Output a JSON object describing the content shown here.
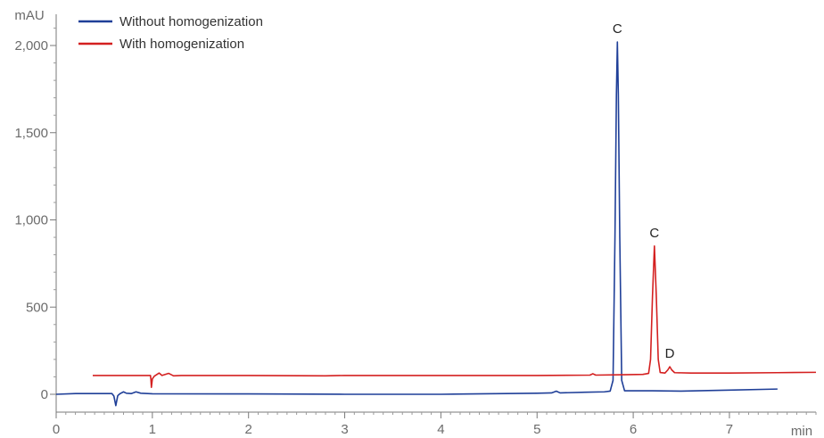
{
  "chart_data": {
    "type": "line",
    "title": "",
    "xlabel": "min",
    "ylabel": "mAU",
    "xlim": [
      0,
      7.9
    ],
    "ylim": [
      -80,
      2130
    ],
    "x_ticks": [
      0,
      1,
      2,
      3,
      4,
      5,
      6,
      7
    ],
    "x_tick_labels": [
      "0",
      "1",
      "2",
      "3",
      "4",
      "5",
      "6",
      "7"
    ],
    "y_ticks": [
      0,
      500,
      1000,
      1500,
      2000
    ],
    "y_tick_labels": [
      "0",
      "500",
      "1,000",
      "1,500",
      "2,000"
    ],
    "grid": false,
    "legend": "top-left",
    "series": [
      {
        "name": "Without homogenization",
        "color": "#1f3f98",
        "points": [
          [
            0.0,
            0
          ],
          [
            0.2,
            4
          ],
          [
            0.58,
            4
          ],
          [
            0.6,
            -10
          ],
          [
            0.62,
            -65
          ],
          [
            0.64,
            -8
          ],
          [
            0.66,
            2
          ],
          [
            0.7,
            14
          ],
          [
            0.73,
            6
          ],
          [
            0.78,
            4
          ],
          [
            0.83,
            14
          ],
          [
            0.88,
            6
          ],
          [
            1.0,
            3
          ],
          [
            2.0,
            2
          ],
          [
            3.0,
            0
          ],
          [
            4.0,
            0
          ],
          [
            5.0,
            6
          ],
          [
            5.15,
            8
          ],
          [
            5.2,
            18
          ],
          [
            5.24,
            8
          ],
          [
            5.5,
            12
          ],
          [
            5.7,
            14
          ],
          [
            5.76,
            18
          ],
          [
            5.79,
            80
          ],
          [
            5.81,
            900
          ],
          [
            5.825,
            1720
          ],
          [
            5.835,
            2020
          ],
          [
            5.845,
            1720
          ],
          [
            5.86,
            900
          ],
          [
            5.88,
            80
          ],
          [
            5.91,
            20
          ],
          [
            6.2,
            20
          ],
          [
            6.5,
            18
          ],
          [
            7.0,
            24
          ],
          [
            7.5,
            30
          ]
        ]
      },
      {
        "name": "With homogenization",
        "color": "#d42020",
        "points": [
          [
            0.38,
            108
          ],
          [
            0.98,
            108
          ],
          [
            0.985,
            85
          ],
          [
            0.99,
            40
          ],
          [
            1.0,
            88
          ],
          [
            1.02,
            104
          ],
          [
            1.07,
            122
          ],
          [
            1.1,
            108
          ],
          [
            1.17,
            120
          ],
          [
            1.22,
            106
          ],
          [
            1.3,
            108
          ],
          [
            2.0,
            108
          ],
          [
            2.8,
            106
          ],
          [
            3.0,
            108
          ],
          [
            4.0,
            108
          ],
          [
            5.0,
            108
          ],
          [
            5.55,
            110
          ],
          [
            5.58,
            118
          ],
          [
            5.61,
            110
          ],
          [
            5.9,
            112
          ],
          [
            6.1,
            114
          ],
          [
            6.16,
            120
          ],
          [
            6.18,
            200
          ],
          [
            6.2,
            560
          ],
          [
            6.22,
            850
          ],
          [
            6.24,
            560
          ],
          [
            6.26,
            200
          ],
          [
            6.28,
            125
          ],
          [
            6.33,
            122
          ],
          [
            6.36,
            140
          ],
          [
            6.38,
            158
          ],
          [
            6.4,
            140
          ],
          [
            6.43,
            124
          ],
          [
            6.6,
            122
          ],
          [
            7.0,
            122
          ],
          [
            7.5,
            124
          ],
          [
            7.9,
            126
          ]
        ]
      }
    ],
    "annotations": [
      {
        "text": "C",
        "x": 5.835,
        "y": 2020
      },
      {
        "text": "C",
        "x": 6.22,
        "y": 850
      },
      {
        "text": "D",
        "x": 6.38,
        "y": 158
      }
    ]
  }
}
